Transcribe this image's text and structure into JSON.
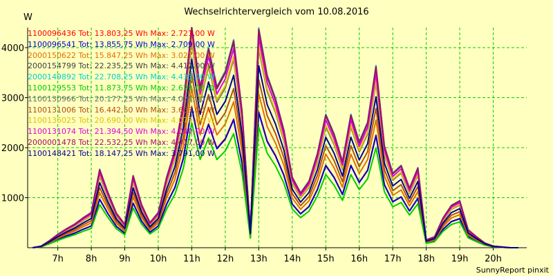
{
  "chart_data": {
    "type": "line",
    "title": "Wechselrichtervergleich vom 10.08.2016",
    "ylabel": "W",
    "footer": "SunnyReport pinxit",
    "ylim": [
      0,
      4400
    ],
    "xlim": [
      6.1,
      21.0
    ],
    "yticks": [
      1000,
      2000,
      3000,
      4000
    ],
    "xticks": [
      7,
      8,
      9,
      10,
      11,
      12,
      13,
      14,
      15,
      16,
      17,
      18,
      19,
      20
    ],
    "xtick_labels": [
      "7h",
      "8h",
      "9h",
      "10h",
      "11h",
      "12h",
      "13h",
      "14h",
      "15h",
      "16h",
      "17h",
      "18h",
      "19h",
      "20h"
    ],
    "grid": true,
    "x": [
      6.25,
      6.5,
      6.75,
      7.0,
      7.25,
      7.5,
      7.75,
      8.0,
      8.25,
      8.5,
      8.75,
      9.0,
      9.25,
      9.5,
      9.75,
      10.0,
      10.25,
      10.5,
      10.75,
      11.0,
      11.25,
      11.5,
      11.75,
      12.0,
      12.25,
      12.5,
      12.75,
      13.0,
      13.25,
      13.5,
      13.75,
      14.0,
      14.25,
      14.5,
      14.75,
      15.0,
      15.25,
      15.5,
      15.75,
      16.0,
      16.25,
      16.5,
      16.75,
      17.0,
      17.25,
      17.5,
      17.75,
      18.0,
      18.25,
      18.5,
      18.75,
      19.0,
      19.25,
      19.5,
      19.75,
      20.0,
      20.25,
      20.5,
      20.75
    ],
    "base_shape": [
      0.0,
      0.02,
      0.09,
      0.17,
      0.24,
      0.3,
      0.38,
      0.45,
      1.0,
      0.7,
      0.44,
      0.3,
      0.92,
      0.55,
      0.32,
      0.45,
      0.9,
      1.25,
      1.85,
      2.9,
      2.05,
      2.55,
      2.05,
      2.25,
      2.65,
      1.75,
      0.22,
      2.8,
      2.2,
      1.9,
      1.5,
      0.9,
      0.7,
      0.85,
      1.2,
      1.7,
      1.45,
      1.1,
      1.7,
      1.35,
      1.6,
      2.32,
      1.3,
      0.95,
      1.05,
      0.76,
      1.02,
      0.1,
      0.14,
      0.38,
      0.54,
      0.6,
      0.23,
      0.14,
      0.06,
      0.02,
      0.01,
      0.0,
      0.0
    ],
    "shape_scale": 1000,
    "series": [
      {
        "name": "1100096436",
        "tot": "13.803,25",
        "max": "2.721,00",
        "color": "#ff0000",
        "factor": 0.97
      },
      {
        "name": "1100096541",
        "tot": "13.855,75",
        "max": "2.709,00",
        "color": "#0000d0",
        "factor": 0.965
      },
      {
        "name": "2000150622",
        "tot": "15.847,25",
        "max": "3.027,00",
        "color": "#e07000",
        "factor": 1.1
      },
      {
        "name": "2000154799",
        "tot": "22.235,25",
        "max": "4.412,00",
        "color": "#404040",
        "factor": 1.55
      },
      {
        "name": "2000149892",
        "tot": "22.708,25",
        "max": "4.433,00",
        "color": "#00d0d0",
        "factor": 1.57
      },
      {
        "name": "1100129553",
        "tot": "11.873,75",
        "max": "2.622,00",
        "color": "#00cc00",
        "factor": 0.86
      },
      {
        "name": "1100130966",
        "tot": "20.177,25",
        "max": "4.025,00",
        "color": "#707070",
        "factor": 1.42
      },
      {
        "name": "1100131006",
        "tot": "16.442,50",
        "max": "3.663,00",
        "color": "#b05010",
        "factor": 1.2
      },
      {
        "name": "1100136025",
        "tot": "20.690,00",
        "max": "4.078,00",
        "color": "#e0c000",
        "factor": 1.44
      },
      {
        "name": "1100131074",
        "tot": "21.394,50",
        "max": "4.040,00",
        "color": "#e000e0",
        "factor": 1.5
      },
      {
        "name": "2000001478",
        "tot": "22.532,25",
        "max": "4.417,00",
        "color": "#a01060",
        "factor": 1.56
      },
      {
        "name": "1100148421",
        "tot": "18.147,25",
        "max": "3.791,00",
        "color": "#00008b",
        "factor": 1.3
      }
    ],
    "legend_template": {
      "tot": "Tot:",
      "unit_wh": "Wh",
      "max": "Max:",
      "unit_w": "W"
    }
  },
  "colors": {
    "background": "#ffffc0",
    "plot_background": "#ffffc0",
    "grid": "#00d000",
    "axis": "#000000"
  }
}
